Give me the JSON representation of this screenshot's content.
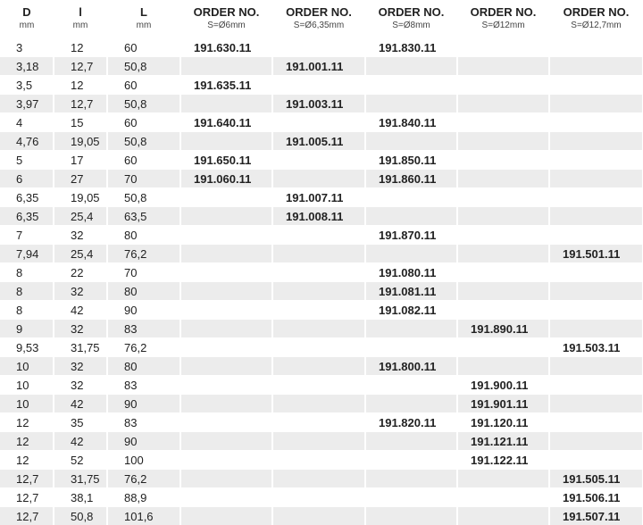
{
  "table": {
    "header": [
      {
        "title": "D",
        "unit": "mm"
      },
      {
        "title": "l",
        "unit": "mm"
      },
      {
        "title": "L",
        "unit": "mm"
      },
      {
        "title": "ORDER NO.",
        "unit": "S=Ø6mm"
      },
      {
        "title": "ORDER NO.",
        "unit": "S=Ø6,35mm"
      },
      {
        "title": "ORDER NO.",
        "unit": "S=Ø8mm"
      },
      {
        "title": "ORDER NO.",
        "unit": "S=Ø12mm"
      },
      {
        "title": "ORDER NO.",
        "unit": "S=Ø12,7mm"
      }
    ],
    "rows": [
      [
        "3",
        "12",
        "60",
        "191.630.11",
        null,
        "191.830.11",
        null,
        null
      ],
      [
        "3,18",
        "12,7",
        "50,8",
        null,
        "191.001.11",
        null,
        null,
        null
      ],
      [
        "3,5",
        "12",
        "60",
        "191.635.11",
        null,
        null,
        null,
        null
      ],
      [
        "3,97",
        "12,7",
        "50,8",
        null,
        "191.003.11",
        null,
        null,
        null
      ],
      [
        "4",
        "15",
        "60",
        "191.640.11",
        null,
        "191.840.11",
        null,
        null
      ],
      [
        "4,76",
        "19,05",
        "50,8",
        null,
        "191.005.11",
        null,
        null,
        null
      ],
      [
        "5",
        "17",
        "60",
        "191.650.11",
        null,
        "191.850.11",
        null,
        null
      ],
      [
        "6",
        "27",
        "70",
        "191.060.11",
        null,
        "191.860.11",
        null,
        null
      ],
      [
        "6,35",
        "19,05",
        "50,8",
        null,
        "191.007.11",
        null,
        null,
        null
      ],
      [
        "6,35",
        "25,4",
        "63,5",
        null,
        "191.008.11",
        null,
        null,
        null
      ],
      [
        "7",
        "32",
        "80",
        null,
        null,
        "191.870.11",
        null,
        null
      ],
      [
        "7,94",
        "25,4",
        "76,2",
        null,
        null,
        null,
        null,
        "191.501.11"
      ],
      [
        "8",
        "22",
        "70",
        null,
        null,
        "191.080.11",
        null,
        null
      ],
      [
        "8",
        "32",
        "80",
        null,
        null,
        "191.081.11",
        null,
        null
      ],
      [
        "8",
        "42",
        "90",
        null,
        null,
        "191.082.11",
        null,
        null
      ],
      [
        "9",
        "32",
        "83",
        null,
        null,
        null,
        "191.890.11",
        null
      ],
      [
        "9,53",
        "31,75",
        "76,2",
        null,
        null,
        null,
        null,
        "191.503.11"
      ],
      [
        "10",
        "32",
        "80",
        null,
        null,
        "191.800.11",
        null,
        null
      ],
      [
        "10",
        "32",
        "83",
        null,
        null,
        null,
        "191.900.11",
        null
      ],
      [
        "10",
        "42",
        "90",
        null,
        null,
        null,
        "191.901.11",
        null
      ],
      [
        "12",
        "35",
        "83",
        null,
        null,
        "191.820.11",
        "191.120.11",
        null
      ],
      [
        "12",
        "42",
        "90",
        null,
        null,
        null,
        "191.121.11",
        null
      ],
      [
        "12",
        "52",
        "100",
        null,
        null,
        null,
        "191.122.11",
        null
      ],
      [
        "12,7",
        "31,75",
        "76,2",
        null,
        null,
        null,
        null,
        "191.505.11"
      ],
      [
        "12,7",
        "38,1",
        "88,9",
        null,
        null,
        null,
        null,
        "191.506.11"
      ],
      [
        "12,7",
        "50,8",
        "101,6",
        null,
        null,
        null,
        null,
        "191.507.11"
      ]
    ]
  }
}
